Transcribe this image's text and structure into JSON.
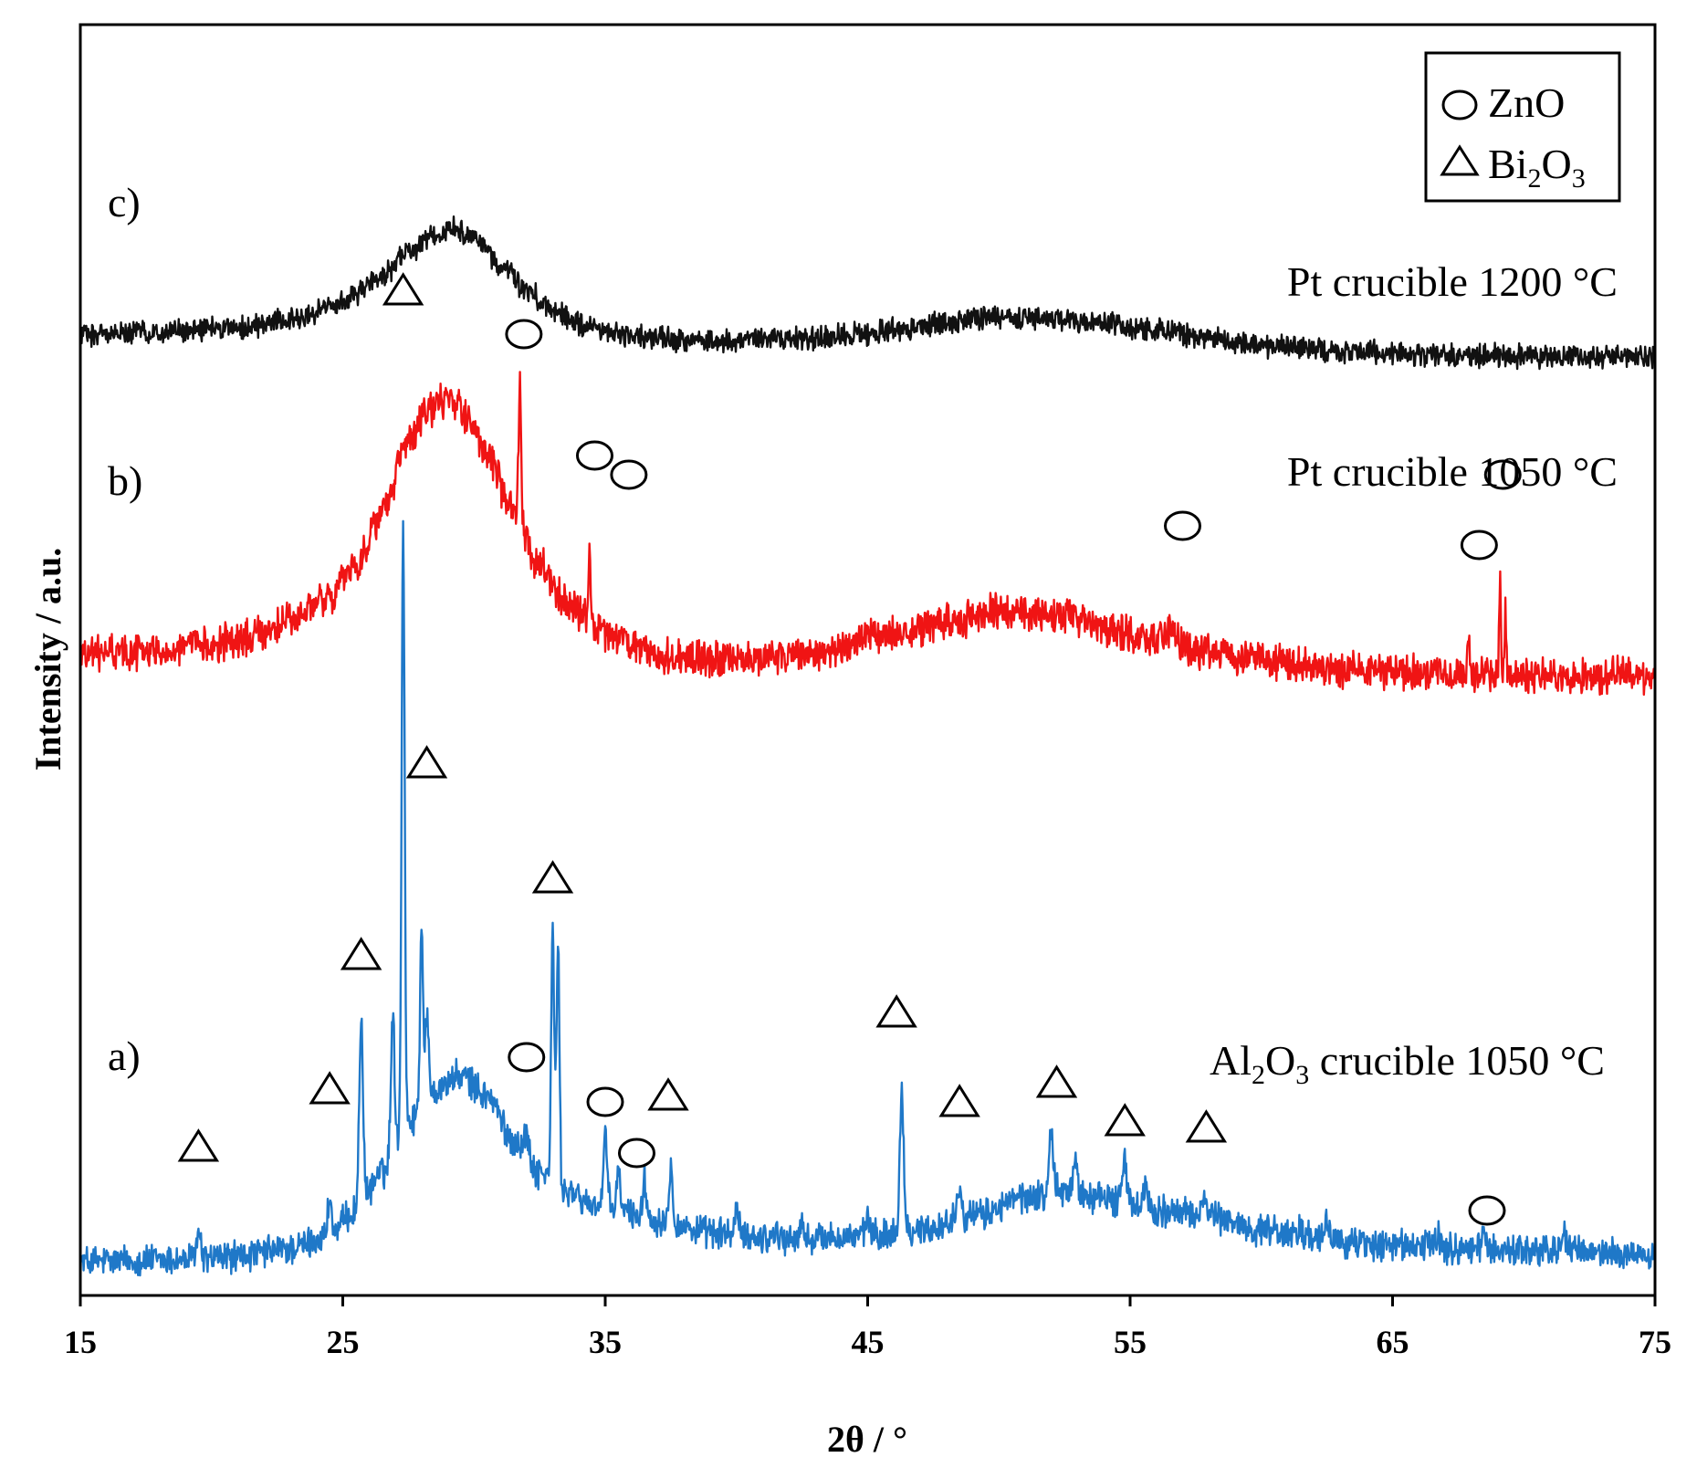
{
  "chart_data": {
    "type": "line",
    "title": "",
    "xlabel": "2θ / °",
    "ylabel": "Intensity / a.u.",
    "xlim": [
      15,
      75
    ],
    "xticks": [
      "15",
      "25",
      "35",
      "45",
      "55",
      "65",
      "75"
    ],
    "y_ticks_shown": false,
    "legend": {
      "placement": "top-right",
      "entries": [
        {
          "marker": "circle",
          "label": "ZnO"
        },
        {
          "marker": "triangle",
          "label_main": "Bi",
          "label_sub1": "2",
          "label_mid": "O",
          "label_sub2": "3",
          "label": "Bi2O3"
        }
      ]
    },
    "series": [
      {
        "id": "a",
        "tag": "a)",
        "name": "Al2O3 crucible 1050 °C",
        "name_parts": {
          "p1": "Al",
          "s1": "2",
          "p2": "O",
          "s2": "3",
          "p3": " crucible 1050 °C"
        },
        "color": "#1f78c8",
        "baseline": [
          [
            15,
            0
          ],
          [
            19,
            0.3
          ],
          [
            21,
            0.8
          ],
          [
            23,
            2
          ],
          [
            24.5,
            4
          ],
          [
            25.5,
            8
          ],
          [
            26.5,
            14
          ],
          [
            27.5,
            22
          ],
          [
            28.5,
            27
          ],
          [
            29.5,
            29
          ],
          [
            30.5,
            26
          ],
          [
            31.5,
            19
          ],
          [
            32.5,
            14
          ],
          [
            33.5,
            11
          ],
          [
            34.5,
            9
          ],
          [
            35.5,
            8
          ],
          [
            37,
            6.5
          ],
          [
            39,
            4.5
          ],
          [
            42,
            3.5
          ],
          [
            45,
            4
          ],
          [
            47,
            5
          ],
          [
            49,
            7
          ],
          [
            51,
            10
          ],
          [
            52.5,
            11
          ],
          [
            54,
            10
          ],
          [
            56,
            8
          ],
          [
            58,
            7
          ],
          [
            60,
            5
          ],
          [
            62,
            3.5
          ],
          [
            65,
            2.5
          ],
          [
            68,
            2
          ],
          [
            72,
            1.5
          ],
          [
            75,
            1
          ]
        ],
        "peaks": [
          {
            "x": 19.5,
            "h": 4,
            "w": 0.12
          },
          {
            "x": 24.5,
            "h": 6,
            "w": 0.1
          },
          {
            "x": 25.7,
            "h": 30,
            "w": 0.1
          },
          {
            "x": 26.9,
            "h": 22,
            "w": 0.1
          },
          {
            "x": 27.3,
            "h": 95,
            "w": 0.08
          },
          {
            "x": 28.0,
            "h": 28,
            "w": 0.08
          },
          {
            "x": 28.2,
            "h": 12,
            "w": 0.1
          },
          {
            "x": 32.0,
            "h": 3,
            "w": 0.15
          },
          {
            "x": 33.0,
            "h": 40,
            "w": 0.08
          },
          {
            "x": 33.2,
            "h": 38,
            "w": 0.08
          },
          {
            "x": 35.0,
            "h": 11,
            "w": 0.1
          },
          {
            "x": 35.5,
            "h": 6,
            "w": 0.1
          },
          {
            "x": 36.5,
            "h": 6,
            "w": 0.1
          },
          {
            "x": 37.5,
            "h": 9,
            "w": 0.1
          },
          {
            "x": 40.0,
            "h": 4,
            "w": 0.1
          },
          {
            "x": 41.5,
            "h": 2,
            "w": 0.1
          },
          {
            "x": 42.5,
            "h": 2,
            "w": 0.1
          },
          {
            "x": 45.0,
            "h": 3,
            "w": 0.1
          },
          {
            "x": 46.3,
            "h": 23,
            "w": 0.1
          },
          {
            "x": 48.5,
            "h": 6,
            "w": 0.12
          },
          {
            "x": 52.0,
            "h": 9,
            "w": 0.12
          },
          {
            "x": 52.9,
            "h": 6,
            "w": 0.1
          },
          {
            "x": 54.8,
            "h": 6,
            "w": 0.12
          },
          {
            "x": 55.6,
            "h": 4,
            "w": 0.12
          },
          {
            "x": 57.8,
            "h": 4,
            "w": 0.12
          },
          {
            "x": 61.5,
            "h": 2,
            "w": 0.15
          },
          {
            "x": 62.5,
            "h": 2,
            "w": 0.15
          },
          {
            "x": 66.7,
            "h": 2,
            "w": 0.15
          },
          {
            "x": 68.5,
            "h": 2,
            "w": 0.15
          },
          {
            "x": 71.5,
            "h": 3,
            "w": 0.15
          }
        ],
        "noise": 2.0,
        "ref_markers": [
          {
            "type": "triangle",
            "x": 19.5,
            "yv": 18
          },
          {
            "type": "triangle",
            "x": 24.5,
            "yv": 27
          },
          {
            "type": "triangle",
            "x": 25.7,
            "yv": 48
          },
          {
            "type": "triangle",
            "x": 27.3,
            "yv": 152
          },
          {
            "type": "triangle",
            "x": 28.2,
            "yv": 78
          },
          {
            "type": "circle",
            "x": 32.0,
            "yv": 32
          },
          {
            "type": "triangle",
            "x": 33.0,
            "yv": 60
          },
          {
            "type": "circle",
            "x": 35.0,
            "yv": 25
          },
          {
            "type": "circle",
            "x": 36.2,
            "yv": 17
          },
          {
            "type": "triangle",
            "x": 37.4,
            "yv": 26
          },
          {
            "type": "triangle",
            "x": 46.1,
            "yv": 39
          },
          {
            "type": "triangle",
            "x": 48.5,
            "yv": 25
          },
          {
            "type": "triangle",
            "x": 52.2,
            "yv": 28
          },
          {
            "type": "triangle",
            "x": 54.8,
            "yv": 22
          },
          {
            "type": "triangle",
            "x": 57.9,
            "yv": 21
          },
          {
            "type": "circle",
            "x": 68.6,
            "yv": 8
          }
        ]
      },
      {
        "id": "b",
        "tag": "b)",
        "name": "Pt crucible 1050 °C",
        "color": "#f01414",
        "baseline": [
          [
            15,
            0
          ],
          [
            18,
            0.5
          ],
          [
            21,
            2
          ],
          [
            23,
            5
          ],
          [
            24.5,
            9
          ],
          [
            25.5,
            14
          ],
          [
            26.5,
            22
          ],
          [
            27.5,
            33
          ],
          [
            28.3,
            38
          ],
          [
            29,
            40
          ],
          [
            29.8,
            37
          ],
          [
            30.5,
            31
          ],
          [
            31.5,
            22
          ],
          [
            32.5,
            14
          ],
          [
            33.5,
            8
          ],
          [
            35,
            3
          ],
          [
            37,
            -0.5
          ],
          [
            40,
            -1
          ],
          [
            43,
            0
          ],
          [
            46,
            3
          ],
          [
            48,
            5
          ],
          [
            50,
            6.5
          ],
          [
            52,
            6
          ],
          [
            54,
            4
          ],
          [
            56,
            2.5
          ],
          [
            58,
            0.5
          ],
          [
            60,
            -1
          ],
          [
            63,
            -2.5
          ],
          [
            66,
            -3
          ],
          [
            70,
            -3.5
          ],
          [
            75,
            -3.5
          ]
        ],
        "peaks": [
          {
            "x": 31.75,
            "h": 22,
            "w": 0.07
          },
          {
            "x": 34.4,
            "h": 10,
            "w": 0.06
          },
          {
            "x": 36.25,
            "h": 3,
            "w": 0.06
          },
          {
            "x": 56.6,
            "h": 3,
            "w": 0.12
          },
          {
            "x": 67.9,
            "h": 6,
            "w": 0.05
          },
          {
            "x": 69.1,
            "h": 17,
            "w": 0.05
          },
          {
            "x": 69.3,
            "h": 10,
            "w": 0.05
          }
        ],
        "noise": 2.2,
        "ref_markers": [
          {
            "type": "circle",
            "x": 31.9,
            "yv": 50
          },
          {
            "type": "circle",
            "x": 34.6,
            "yv": 31
          },
          {
            "type": "circle",
            "x": 35.9,
            "yv": 28
          },
          {
            "type": "circle",
            "x": 57.0,
            "yv": 20
          },
          {
            "type": "circle",
            "x": 68.3,
            "yv": 17
          },
          {
            "type": "circle",
            "x": 69.2,
            "yv": 28
          }
        ]
      },
      {
        "id": "c",
        "tag": "c)",
        "name": "Pt crucible 1200 °C",
        "color": "#111111",
        "baseline": [
          [
            15,
            0
          ],
          [
            18,
            0.5
          ],
          [
            21,
            1.5
          ],
          [
            23,
            3
          ],
          [
            24.5,
            5.5
          ],
          [
            25.5,
            8.5
          ],
          [
            26.5,
            13
          ],
          [
            27.5,
            18
          ],
          [
            28.5,
            21.5
          ],
          [
            29.2,
            23
          ],
          [
            30,
            21
          ],
          [
            31,
            15
          ],
          [
            32,
            9.5
          ],
          [
            33,
            5
          ],
          [
            34.5,
            1.5
          ],
          [
            36,
            -0.5
          ],
          [
            38,
            -1.5
          ],
          [
            40,
            -1.5
          ],
          [
            42,
            -1
          ],
          [
            44,
            -0.5
          ],
          [
            46,
            1
          ],
          [
            48,
            2.5
          ],
          [
            50,
            3.5
          ],
          [
            52,
            3.5
          ],
          [
            54,
            2.5
          ],
          [
            56,
            1
          ],
          [
            58,
            -1
          ],
          [
            61,
            -3
          ],
          [
            64,
            -4
          ],
          [
            67,
            -4.5
          ],
          [
            70,
            -4.8
          ],
          [
            75,
            -5
          ]
        ],
        "peaks": [],
        "noise": 2.0,
        "ref_markers": []
      }
    ]
  }
}
